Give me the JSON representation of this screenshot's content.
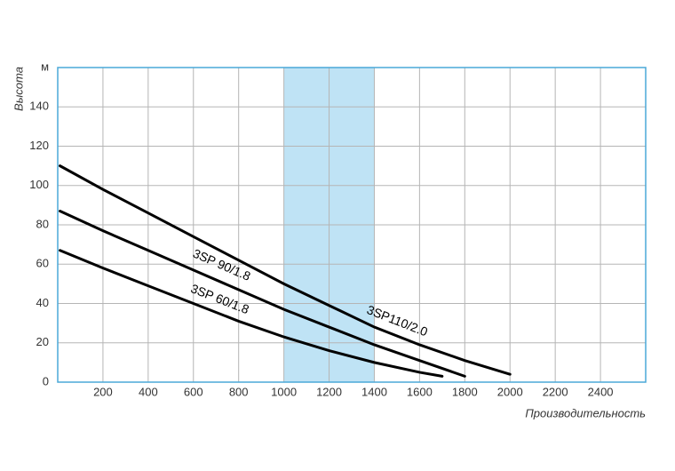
{
  "chart_data": {
    "type": "line",
    "y_label": "Высота",
    "x_label": "Производительность",
    "xlim": [
      0,
      2600
    ],
    "ylim": [
      0,
      160
    ],
    "xticks": [
      200,
      400,
      600,
      800,
      1000,
      1200,
      1400,
      1600,
      1800,
      2000,
      2200,
      2400
    ],
    "yticks": [
      0,
      20,
      40,
      60,
      80,
      100,
      120,
      140,
      {
        "value": 160,
        "label": "м"
      }
    ],
    "grid": true,
    "highlight_range": [
      1000,
      1400
    ],
    "highlight_color": "#bfe3f5",
    "series": [
      {
        "name": "3SP110/2.0",
        "color": "#000000",
        "x": [
          10,
          200,
          400,
          600,
          800,
          1000,
          1200,
          1400,
          1600,
          1800,
          2000
        ],
        "values": [
          110,
          98,
          86,
          74,
          62,
          50,
          39,
          28,
          19,
          11,
          4
        ]
      },
      {
        "name": "3SP 90/1.8",
        "color": "#000000",
        "x": [
          10,
          200,
          400,
          600,
          800,
          1000,
          1200,
          1400,
          1600,
          1800
        ],
        "values": [
          87,
          77,
          67,
          57,
          47,
          37,
          28,
          19,
          11,
          3
        ]
      },
      {
        "name": "3SP 60/1.8",
        "color": "#000000",
        "x": [
          10,
          200,
          400,
          600,
          800,
          1000,
          1200,
          1400,
          1600,
          1700
        ],
        "values": [
          67,
          58,
          49,
          40,
          31,
          23,
          16,
          10,
          5,
          3
        ]
      }
    ]
  }
}
